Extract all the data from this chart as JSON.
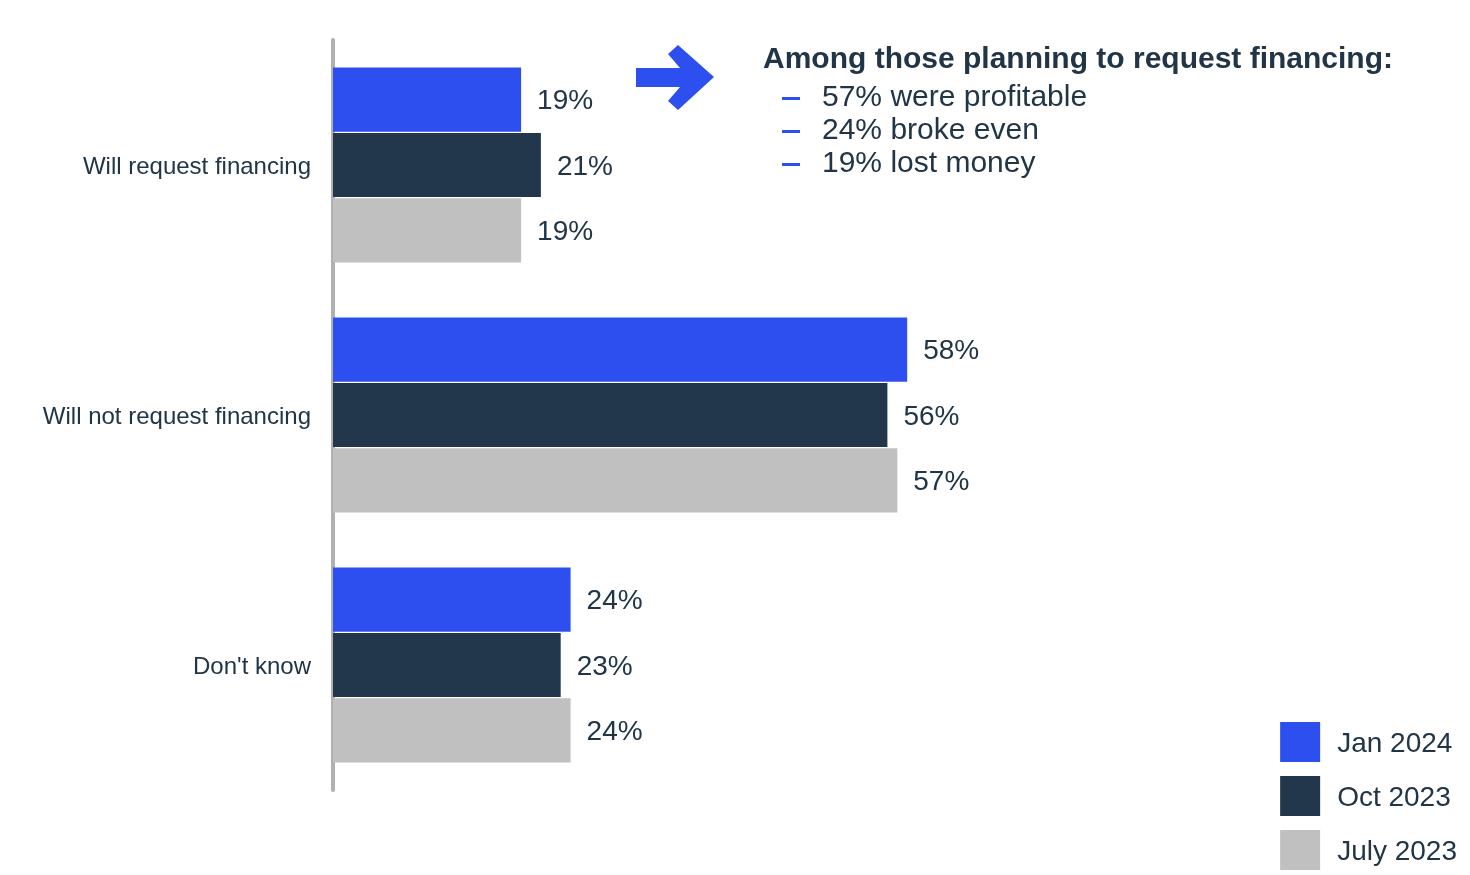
{
  "chart_data": {
    "type": "bar",
    "orientation": "horizontal",
    "categories": [
      "Will request financing",
      "Will not request financing",
      "Don't know"
    ],
    "series": [
      {
        "name": "Jan 2024",
        "color": "#2d4ff0",
        "values": [
          19,
          58,
          24
        ],
        "value_labels": [
          "19%",
          "58%",
          "24%"
        ]
      },
      {
        "name": "Oct 2023",
        "color": "#22364c",
        "values": [
          21,
          56,
          23
        ],
        "value_labels": [
          "21%",
          "56%",
          "23%"
        ]
      },
      {
        "name": "July 2023",
        "color": "#c0c0c0",
        "values": [
          19,
          57,
          24
        ],
        "value_labels": [
          "19%",
          "57%",
          "24%"
        ]
      }
    ],
    "annotations": [
      "Among those planning to request financing:",
      "57% were profitable",
      "24% broke even",
      "19% lost money"
    ],
    "legend": "bottom right",
    "grid": false
  }
}
